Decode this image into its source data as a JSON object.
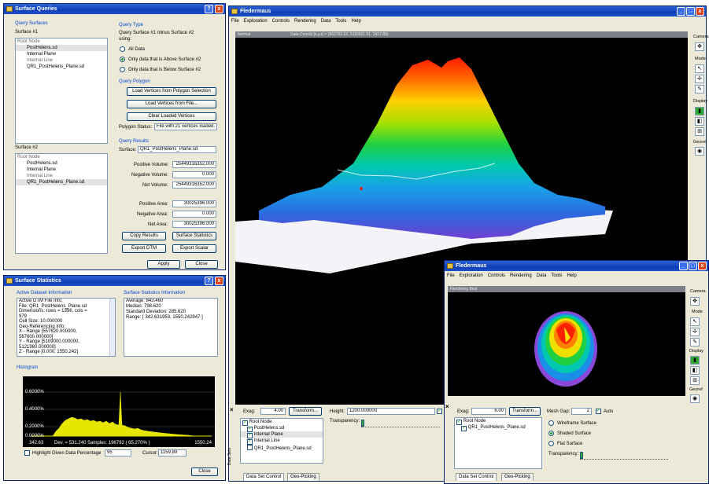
{
  "surface_queries": {
    "title": "Surface Queries",
    "help": "?",
    "close": "x",
    "query_surfaces_label": "Query Surfaces",
    "surface1_label": "Surface #1",
    "surface1_items": [
      "Root Node",
      "PostHelens.sd",
      "Internal Plane",
      "Internal Line",
      "QR1_PostHelens_Plane.sd"
    ],
    "surface2_label": "Surface #2",
    "surface2_items": [
      "Root Node",
      "PostHelens.sd",
      "Internal Plane",
      "Internal Line",
      "QR1_PostHelens_Plane.sd"
    ],
    "query_type_label": "Query Type",
    "query_desc_1": "Query Surface #1 minus Surface #2",
    "query_desc_2": "using:",
    "radio_all": "All Data",
    "radio_above": "Only data that is Above Surface #2",
    "radio_below": "Only data that is Below Surface #2",
    "query_polygon_label": "Query Polygon",
    "btn_load_selection": "Load Vertices from Polygon Selection",
    "btn_load_file": "Load Vertices from File...",
    "btn_clear": "Clear Loaded Vertices",
    "polygon_status_label": "Polygon Status:",
    "polygon_status_value": "File with 21 vertices loaded.",
    "query_results_label": "Query Results",
    "surface_label": "Surface:",
    "surface_value": "QR1_PostHelens_Plane.sd",
    "pos_vol_label": "Positive Volume:",
    "pos_vol": "25449316352.000",
    "neg_vol_label": "Negative Volume:",
    "neg_vol": "0.000",
    "net_vol_label": "Net Volume:",
    "net_vol": "25449316352.000",
    "pos_area_label": "Positive Area:",
    "pos_area": "30025396.000",
    "neg_area_label": "Negative Area:",
    "neg_area": "0.000",
    "net_area_label": "Net Area:",
    "net_area": "30025396.000",
    "btn_copy": "Copy Results",
    "btn_stats": "Surface Statistics",
    "btn_export_dtm": "Export DTM",
    "btn_export_scalar": "Export Scalar",
    "btn_apply": "Apply",
    "btn_close": "Close"
  },
  "surface_stats": {
    "title": "Surface Statistics",
    "help": "?",
    "close": "x",
    "active_label": "Active Dataset Information",
    "info_lines": [
      "Active DTM File Info:",
      "  File: QR1_PostHelens_Plane.sd",
      "  Dimensions: rows = 1396, cols =",
      "979",
      "  Cell Size: 10.000000",
      "Geo-Referencing Info:",
      "  X - Range [557620.000000,",
      "567600.000000]",
      "  Y - Range [5109000.000000,",
      "5121980.000000]",
      "  Z - Range [0.000, 1550.242]"
    ],
    "stats_label": "Surface Statistics Information",
    "stats_lines": [
      "Average: 843.460",
      "Median: 798.620",
      "Standard Deviation: 285.620",
      "Range: [ 342.631953, 1550.242947 ]"
    ],
    "histogram_label": "Histogram",
    "hist_y_labels": [
      "0.6000%",
      "0.4000%",
      "0.2000%",
      "0.0000%"
    ],
    "hist_stats": "Dev. = 531.240  Samples: 196792 ( 65.270% )",
    "hist_x_left": "342.63",
    "hist_x_right": "1550.24",
    "highlight_label": "Highlight Given Data Percentage",
    "highlight_value": "95",
    "cursor_label": "Cursor:",
    "cursor_value": "1159.89",
    "btn_close": "Close"
  },
  "main": {
    "title": "Fledermaus",
    "menu": [
      "File",
      "Exploration",
      "Controls",
      "Rendering",
      "Data",
      "Tools",
      "Help"
    ],
    "strip_left": "Normal",
    "strip_right": "Data Coords [x,y,z] = (562762.62, 5115601.91, 1417.89)",
    "side_labels": [
      "Camera",
      "Mode",
      "Display",
      "Georef"
    ],
    "exag_label": "Exag:",
    "exag_value": "4.00",
    "btn_transform": "Transform...",
    "tree": [
      "Root Node",
      "PostHelens.sd",
      "Internal Plane",
      "Internal Line",
      "QR1_PostHelens_Plane.sd"
    ],
    "height_label": "Height:",
    "height_value": "1200.000000",
    "transparency_label": "Transparency:",
    "tab_dataset": "Data Set Control",
    "tab_geopicking": "Geo-Picking",
    "vertical_tab": "Data Sets"
  },
  "second": {
    "title": "Fledermaus",
    "menu": [
      "File",
      "Exploration",
      "Controls",
      "Rendering",
      "Data",
      "Tools",
      "Help"
    ],
    "strip": "Rendering Best",
    "side_labels": [
      "Camera",
      "Mode",
      "Display",
      "Georef"
    ],
    "exag_label": "Exag:",
    "exag_value": "6.00",
    "btn_transform": "Transform...",
    "tree": [
      "Root Node",
      "QR1_PostHelens_Plane.sd"
    ],
    "mesh_gap_label": "Mesh Gap:",
    "mesh_gap_value": "2",
    "auto_label": "Auto",
    "radio_wire": "Wireframe Surface",
    "radio_shaded": "Shaded Surface",
    "radio_flat": "Flat Surface",
    "transparency_label": "Transparency:",
    "tab_dataset": "Data Set Control",
    "tab_geopicking": "Geo-Picking",
    "vertical_tab": "Data Sets"
  }
}
